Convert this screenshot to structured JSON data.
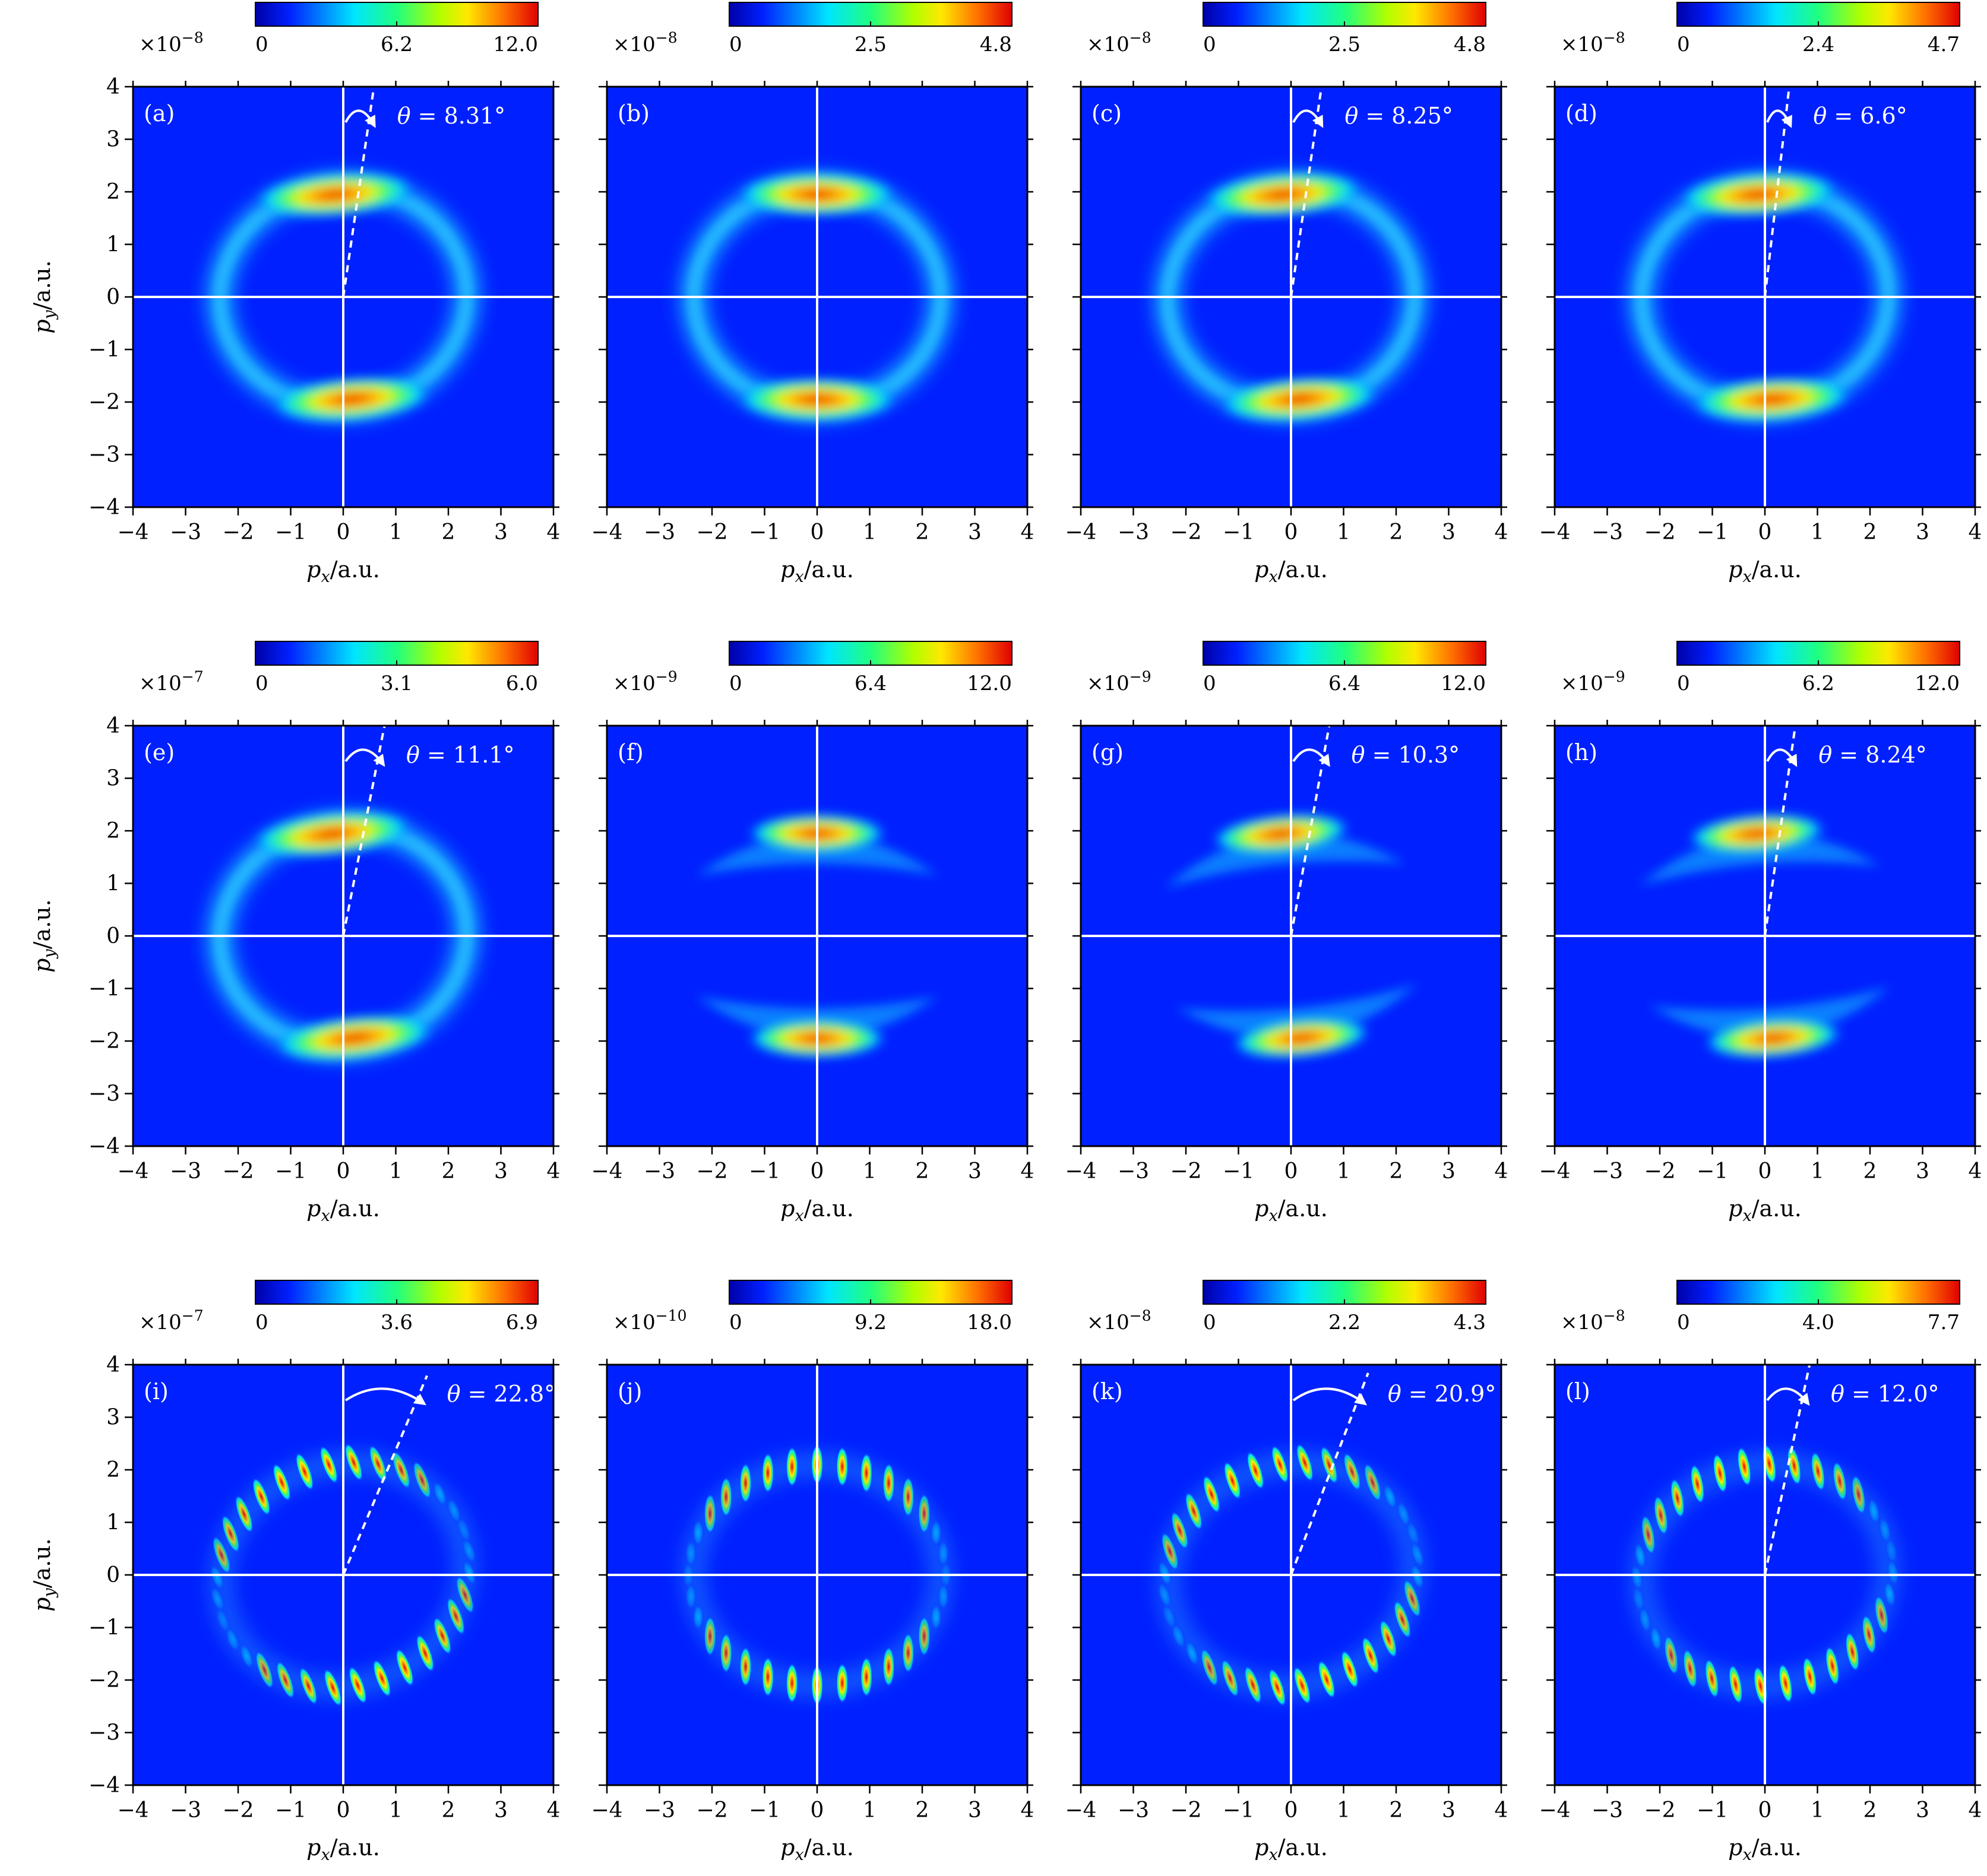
{
  "figure": {
    "x_axis_label": "p_x/a.u.",
    "y_axis_label": "p_y/a.u.",
    "ticks": [
      "-4",
      "-3",
      "-2",
      "-1",
      "0",
      "1",
      "2",
      "3",
      "4"
    ]
  },
  "chart_data": [
    {
      "type": "heatmap",
      "panel": "(a)",
      "colorbar": {
        "exponent": "-8",
        "ticks": [
          "0",
          "6.2",
          "12.0"
        ]
      },
      "angle_label": "8.31°",
      "angle_deg": 8.31,
      "pattern": "ring"
    },
    {
      "type": "heatmap",
      "panel": "(b)",
      "colorbar": {
        "exponent": "-8",
        "ticks": [
          "0",
          "2.5",
          "4.8"
        ]
      },
      "angle_label": "",
      "angle_deg": 0,
      "pattern": "ring"
    },
    {
      "type": "heatmap",
      "panel": "(c)",
      "colorbar": {
        "exponent": "-8",
        "ticks": [
          "0",
          "2.5",
          "4.8"
        ]
      },
      "angle_label": "8.25°",
      "angle_deg": 8.25,
      "pattern": "ring"
    },
    {
      "type": "heatmap",
      "panel": "(d)",
      "colorbar": {
        "exponent": "-8",
        "ticks": [
          "0",
          "2.4",
          "4.7"
        ]
      },
      "angle_label": "6.6°",
      "angle_deg": 6.6,
      "pattern": "ring"
    },
    {
      "type": "heatmap",
      "panel": "(e)",
      "colorbar": {
        "exponent": "-7",
        "ticks": [
          "0",
          "3.1",
          "6.0"
        ]
      },
      "angle_label": "11.1°",
      "angle_deg": 11.1,
      "pattern": "ring"
    },
    {
      "type": "heatmap",
      "panel": "(f)",
      "colorbar": {
        "exponent": "-9",
        "ticks": [
          "0",
          "6.4",
          "12.0"
        ]
      },
      "angle_label": "",
      "angle_deg": 0,
      "pattern": "crescent"
    },
    {
      "type": "heatmap",
      "panel": "(g)",
      "colorbar": {
        "exponent": "-9",
        "ticks": [
          "0",
          "6.4",
          "12.0"
        ]
      },
      "angle_label": "10.3°",
      "angle_deg": 10.3,
      "pattern": "crescent"
    },
    {
      "type": "heatmap",
      "panel": "(h)",
      "colorbar": {
        "exponent": "-9",
        "ticks": [
          "0",
          "6.2",
          "12.0"
        ]
      },
      "angle_label": "8.24°",
      "angle_deg": 8.24,
      "pattern": "crescent"
    },
    {
      "type": "heatmap",
      "panel": "(i)",
      "colorbar": {
        "exponent": "-7",
        "ticks": [
          "0",
          "3.6",
          "6.9"
        ]
      },
      "angle_label": "22.8°",
      "angle_deg": 22.8,
      "pattern": "fringes"
    },
    {
      "type": "heatmap",
      "panel": "(j)",
      "colorbar": {
        "exponent": "-10",
        "ticks": [
          "0",
          "9.2",
          "18.0"
        ]
      },
      "angle_label": "",
      "angle_deg": 0,
      "pattern": "fringes"
    },
    {
      "type": "heatmap",
      "panel": "(k)",
      "colorbar": {
        "exponent": "-8",
        "ticks": [
          "0",
          "2.2",
          "4.3"
        ]
      },
      "angle_label": "20.9°",
      "angle_deg": 20.9,
      "pattern": "fringes"
    },
    {
      "type": "heatmap",
      "panel": "(l)",
      "colorbar": {
        "exponent": "-8",
        "ticks": [
          "0",
          "4.0",
          "7.7"
        ]
      },
      "angle_label": "12.0°",
      "angle_deg": 12.0,
      "pattern": "fringes"
    }
  ]
}
